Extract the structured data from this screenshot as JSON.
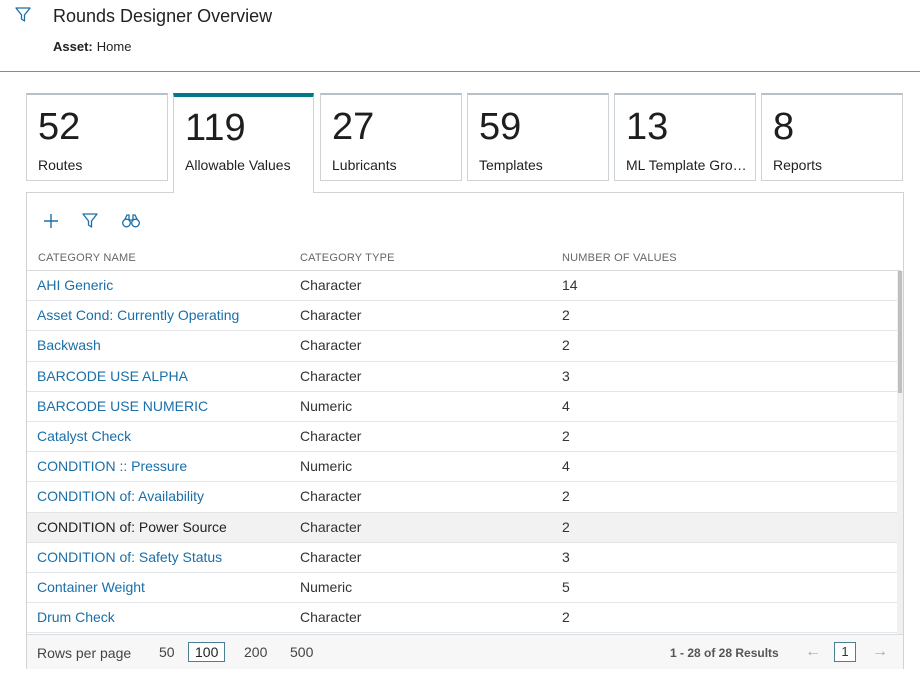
{
  "header": {
    "title": "Rounds Designer Overview",
    "asset_label": "Asset:",
    "asset_value": "Home"
  },
  "tiles": [
    {
      "count": "52",
      "label": "Routes"
    },
    {
      "count": "119",
      "label": "Allowable Values",
      "active": true
    },
    {
      "count": "27",
      "label": "Lubricants"
    },
    {
      "count": "59",
      "label": "Templates"
    },
    {
      "count": "13",
      "label": "ML Template Grou..."
    },
    {
      "count": "8",
      "label": "Reports"
    }
  ],
  "toolbar": {
    "icons": [
      "plus-icon",
      "filter-icon",
      "binoculars-icon"
    ]
  },
  "table": {
    "columns": [
      "CATEGORY NAME",
      "CATEGORY TYPE",
      "NUMBER OF VALUES"
    ],
    "rows": [
      {
        "name": "AHI Generic",
        "type": "Character",
        "count": "14"
      },
      {
        "name": "Asset Cond: Currently Operating",
        "type": "Character",
        "count": "2"
      },
      {
        "name": "Backwash",
        "type": "Character",
        "count": "2"
      },
      {
        "name": "BARCODE USE ALPHA",
        "type": "Character",
        "count": "3"
      },
      {
        "name": "BARCODE USE NUMERIC",
        "type": "Numeric",
        "count": "4"
      },
      {
        "name": "Catalyst Check",
        "type": "Character",
        "count": "2"
      },
      {
        "name": "CONDITION :: Pressure",
        "type": "Numeric",
        "count": "4"
      },
      {
        "name": "CONDITION of: Availability",
        "type": "Character",
        "count": "2"
      },
      {
        "name": "CONDITION of: Power Source",
        "type": "Character",
        "count": "2"
      },
      {
        "name": "CONDITION of: Safety Status",
        "type": "Character",
        "count": "3"
      },
      {
        "name": "Container Weight",
        "type": "Numeric",
        "count": "5"
      },
      {
        "name": "Drum Check",
        "type": "Character",
        "count": "2"
      }
    ]
  },
  "footer": {
    "rows_per_page_label": "Rows per page",
    "options": [
      "50",
      "100",
      "200",
      "500"
    ],
    "selected_option": "100",
    "results": "1 - 28 of 28 Results",
    "current_page": "1",
    "prev_arrow": "←",
    "next_arrow": "→"
  },
  "colors": {
    "accent": "#007a8a",
    "link": "#1a6fa8"
  }
}
